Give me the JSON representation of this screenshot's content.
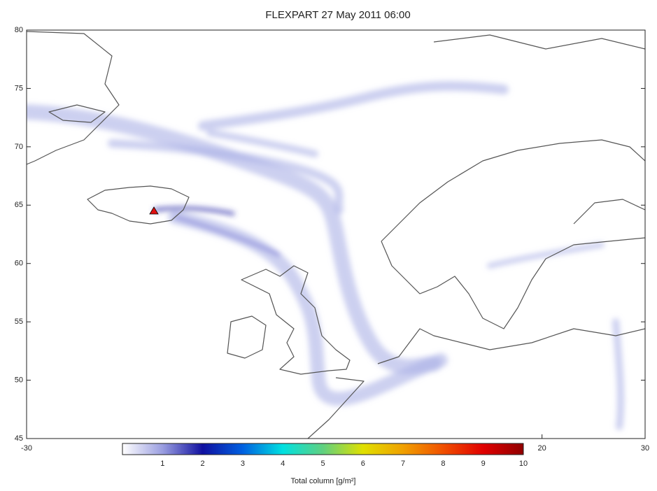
{
  "chart_data": {
    "type": "map",
    "title": "FLEXPART 27 May 2011 06:00",
    "xlim": [
      -30,
      30
    ],
    "xticks": [
      -30,
      20,
      30
    ],
    "ylim": [
      45,
      80
    ],
    "yticks": [
      45,
      50,
      55,
      60,
      65,
      70,
      75,
      80
    ],
    "colorbar": {
      "label": "Total column [g/m²]",
      "lim": [
        0,
        10
      ],
      "ticks": [
        1,
        2,
        3,
        4,
        5,
        6,
        7,
        8,
        9,
        10
      ],
      "colors": [
        "#ffffff",
        "#9a9ee0",
        "#1010a0",
        "#0060e0",
        "#00e0e0",
        "#60d080",
        "#e0e000",
        "#f0a000",
        "#f05000",
        "#e00000",
        "#900000"
      ]
    }
  }
}
